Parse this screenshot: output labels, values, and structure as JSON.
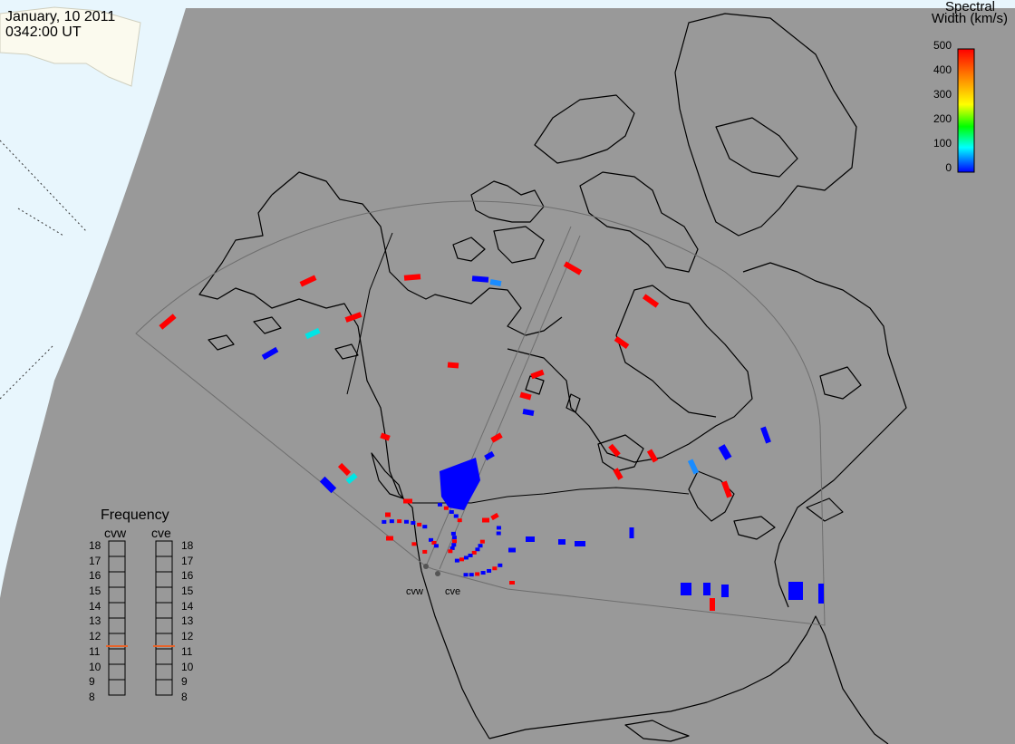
{
  "header": {
    "date": "January, 10 2011",
    "time": "0342:00 UT"
  },
  "colorbar": {
    "title_line1": "Spectral",
    "title_line2": "Width (km/s)",
    "ticks": [
      "500",
      "400",
      "300",
      "200",
      "100",
      "0"
    ],
    "colors": [
      "#ff0000",
      "#ff8000",
      "#ffff00",
      "#00ff00",
      "#00ffff",
      "#0000ff"
    ]
  },
  "frequency": {
    "title": "Frequency",
    "radars": [
      {
        "name": "cvw",
        "selected_mhz": 11
      },
      {
        "name": "cve",
        "selected_mhz": 11
      }
    ],
    "ticks": [
      "18",
      "17",
      "16",
      "15",
      "14",
      "13",
      "12",
      "11",
      "10",
      "9",
      "8"
    ]
  },
  "radar_sites": {
    "west": "cvw",
    "east": "cve"
  },
  "colors": {
    "ocean": "#e8f6fd",
    "night_land": "#999999",
    "day_land": "#fbfaee",
    "high": "#ff0000",
    "low": "#0000ff",
    "mid_low": "#00e5e5",
    "mid_low2": "#1a8cff",
    "freq_marker": "#e8642a"
  }
}
